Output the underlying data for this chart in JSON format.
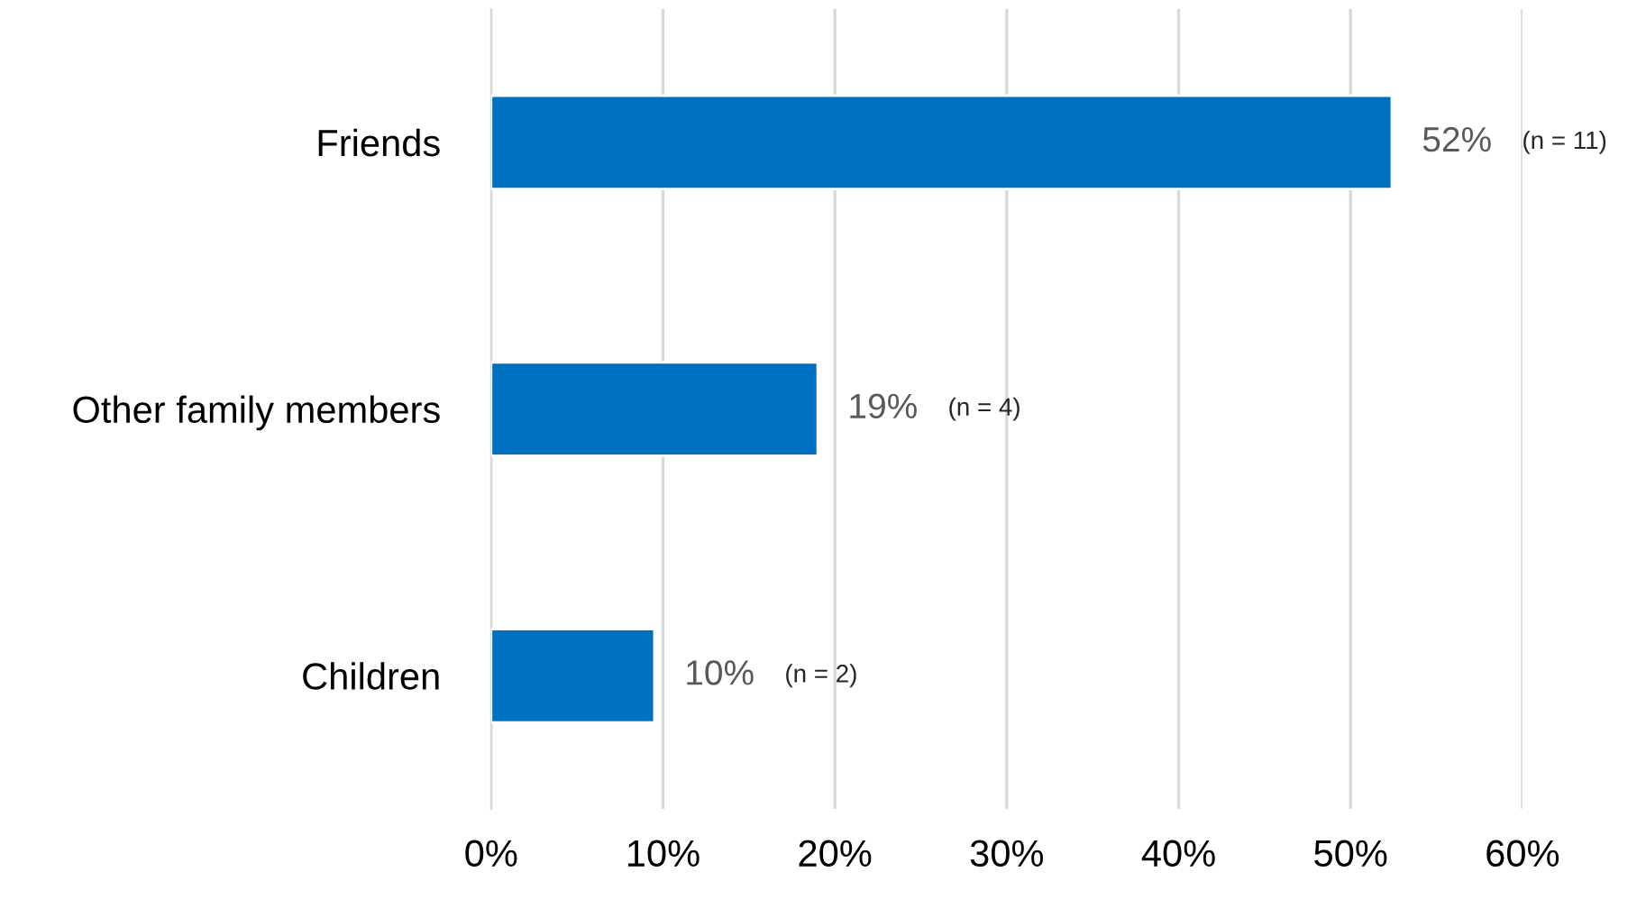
{
  "chart_data": {
    "type": "bar",
    "orientation": "horizontal",
    "categories": [
      "Friends",
      "Other family members",
      "Children"
    ],
    "values": [
      52.4,
      19.0,
      9.5
    ],
    "color": "#0070c0",
    "value_labels": [
      "52%",
      "19%",
      "10%"
    ],
    "xlim": [
      0,
      60
    ],
    "xticks": [
      {
        "value": 0,
        "label": "0%"
      },
      {
        "value": 10,
        "label": "10%"
      },
      {
        "value": 20,
        "label": "20%"
      },
      {
        "value": 30,
        "label": "30%"
      },
      {
        "value": 40,
        "label": "40%"
      },
      {
        "value": 50,
        "label": "50%"
      },
      {
        "value": 60,
        "label": "60%"
      }
    ],
    "grid": "x",
    "annotations": [
      "(n = 11)",
      "(n = 4)",
      "(n = 2)"
    ]
  }
}
